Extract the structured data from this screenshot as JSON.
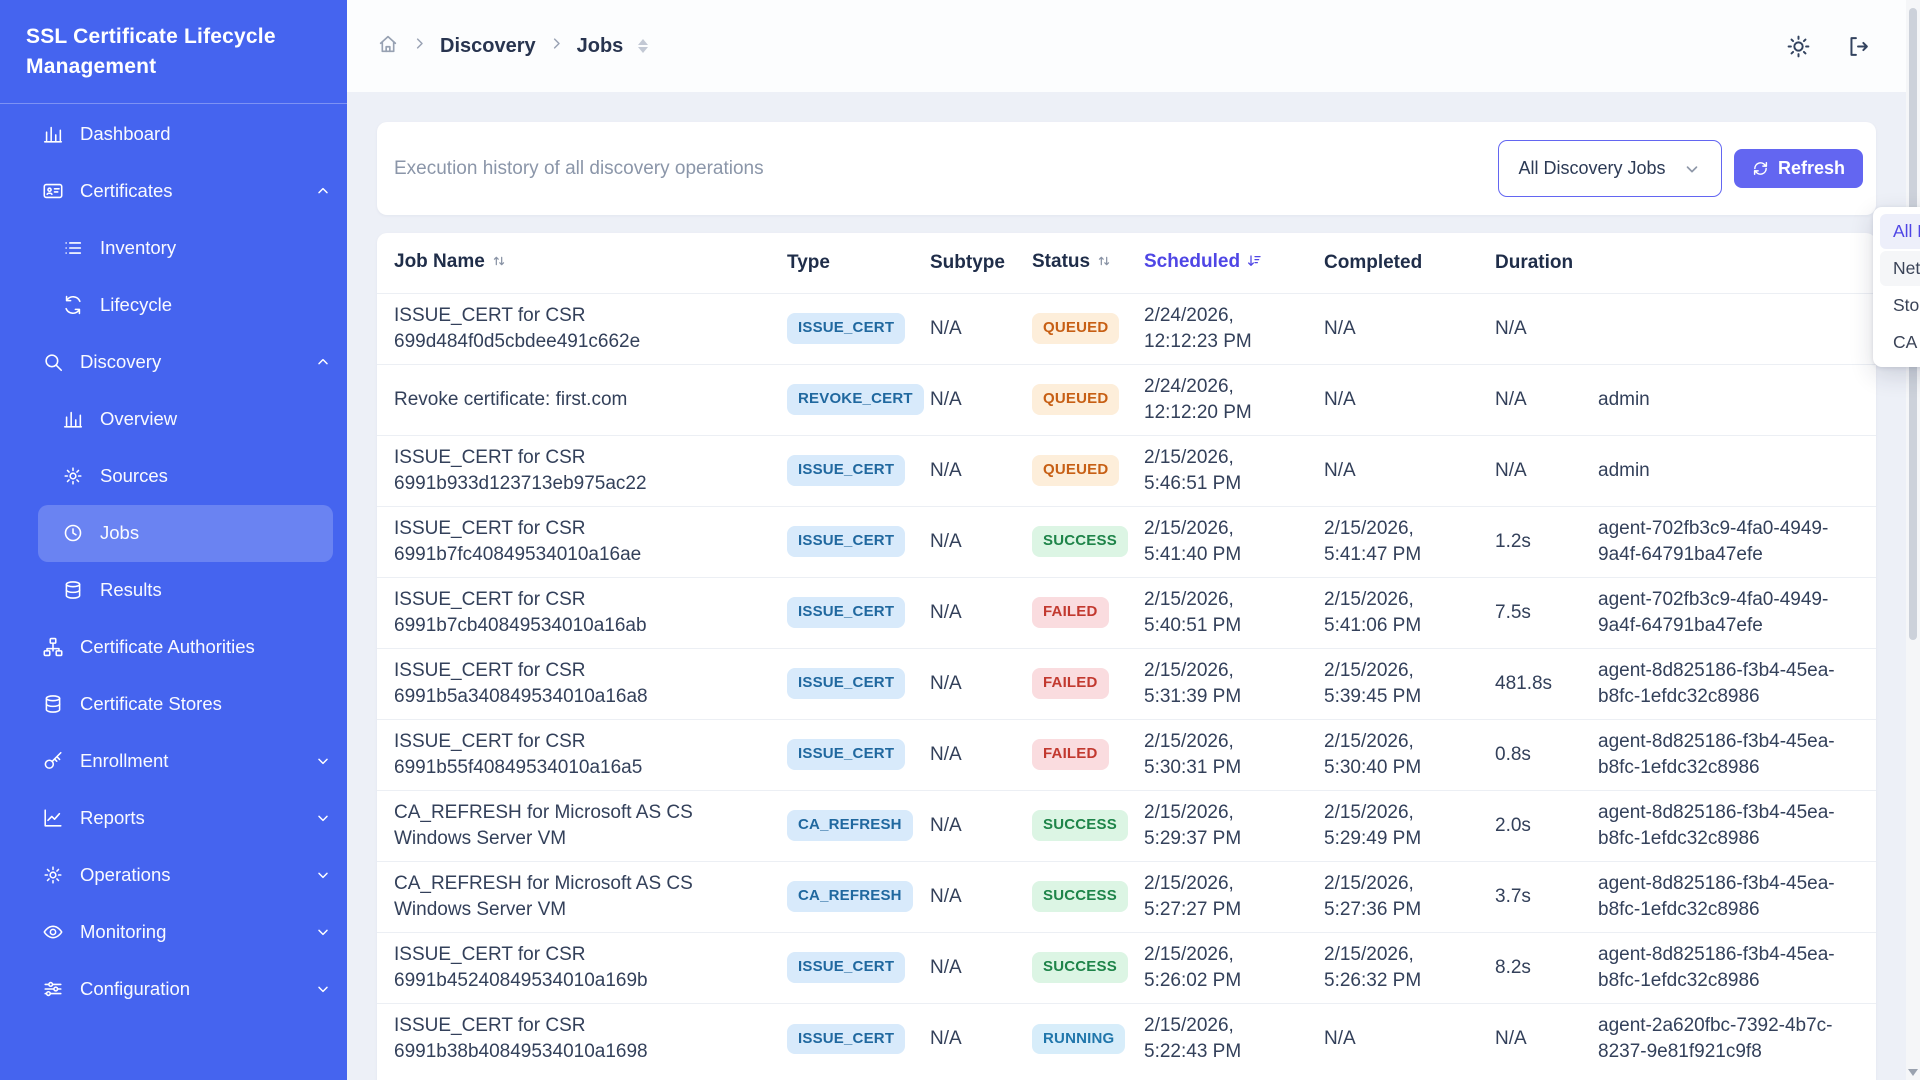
{
  "app": {
    "title": "SSL Certificate Lifecycle Management"
  },
  "sidebar": {
    "items": [
      {
        "label": "Dashboard",
        "icon": "chart-bar-icon",
        "level": 0
      },
      {
        "label": "Certificates",
        "icon": "id-card-icon",
        "level": 0,
        "chevron": "up"
      },
      {
        "label": "Inventory",
        "icon": "list-icon",
        "level": 1
      },
      {
        "label": "Lifecycle",
        "icon": "sync-icon",
        "level": 1
      },
      {
        "label": "Discovery",
        "icon": "search-icon",
        "level": 0,
        "chevron": "up"
      },
      {
        "label": "Overview",
        "icon": "chart-bar-icon",
        "level": 1
      },
      {
        "label": "Sources",
        "icon": "gear-icon",
        "level": 1
      },
      {
        "label": "Jobs",
        "icon": "clock-icon",
        "level": 1,
        "active": true
      },
      {
        "label": "Results",
        "icon": "database-icon",
        "level": 1
      },
      {
        "label": "Certificate Authorities",
        "icon": "sitemap-icon",
        "level": 0
      },
      {
        "label": "Certificate Stores",
        "icon": "database-icon",
        "level": 0
      },
      {
        "label": "Enrollment",
        "icon": "key-icon",
        "level": 0,
        "chevron": "down"
      },
      {
        "label": "Reports",
        "icon": "chart-line-icon",
        "level": 0,
        "chevron": "down"
      },
      {
        "label": "Operations",
        "icon": "gear-icon",
        "level": 0,
        "chevron": "down"
      },
      {
        "label": "Monitoring",
        "icon": "eye-icon",
        "level": 0,
        "chevron": "down"
      },
      {
        "label": "Configuration",
        "icon": "sliders-icon",
        "level": 0,
        "chevron": "down"
      }
    ]
  },
  "breadcrumb": {
    "items": [
      "Discovery",
      "Jobs"
    ]
  },
  "toolbar": {
    "description": "Execution history of all discovery operations",
    "filter_value": "All Discovery Jobs",
    "refresh_label": "Refresh"
  },
  "dropdown": {
    "options": [
      {
        "label": "All Discovery Jobs",
        "selected": true
      },
      {
        "label": "Network Discovery",
        "hovered": true
      },
      {
        "label": "Store Discovery"
      },
      {
        "label": "CA Discovery"
      }
    ]
  },
  "colors": {
    "sidebar": "#4564ef",
    "accent": "#6366f1",
    "status_queued": "#c75f14",
    "status_success": "#1e8449",
    "status_failed": "#c2392f",
    "status_running": "#2076ab"
  },
  "table": {
    "columns": [
      {
        "label": "Job Name",
        "sort": "both"
      },
      {
        "label": "Type"
      },
      {
        "label": "Subtype"
      },
      {
        "label": "Status",
        "sort": "both"
      },
      {
        "label": "Scheduled",
        "sort": "desc",
        "active": true
      },
      {
        "label": "Completed"
      },
      {
        "label": "Duration"
      },
      {
        "label": ""
      }
    ],
    "rows": [
      {
        "job_name": "ISSUE_CERT for CSR 699d484f0d5cbdee491c662e",
        "type": "ISSUE_CERT",
        "subtype": "N/A",
        "status": "QUEUED",
        "scheduled": "2/24/2026, 12:12:23 PM",
        "completed": "N/A",
        "duration": "N/A",
        "triggered_by": ""
      },
      {
        "job_name": "Revoke certificate: first.com",
        "type": "REVOKE_CERT",
        "subtype": "N/A",
        "status": "QUEUED",
        "scheduled": "2/24/2026, 12:12:20 PM",
        "completed": "N/A",
        "duration": "N/A",
        "triggered_by": "admin"
      },
      {
        "job_name": "ISSUE_CERT for CSR 6991b933d123713eb975ac22",
        "type": "ISSUE_CERT",
        "subtype": "N/A",
        "status": "QUEUED",
        "scheduled": "2/15/2026, 5:46:51 PM",
        "completed": "N/A",
        "duration": "N/A",
        "triggered_by": "admin"
      },
      {
        "job_name": "ISSUE_CERT for CSR 6991b7fc40849534010a16ae",
        "type": "ISSUE_CERT",
        "subtype": "N/A",
        "status": "SUCCESS",
        "scheduled": "2/15/2026, 5:41:40 PM",
        "completed": "2/15/2026, 5:41:47 PM",
        "duration": "1.2s",
        "triggered_by": "agent-702fb3c9-4fa0-4949-9a4f-64791ba47efe"
      },
      {
        "job_name": "ISSUE_CERT for CSR 6991b7cb40849534010a16ab",
        "type": "ISSUE_CERT",
        "subtype": "N/A",
        "status": "FAILED",
        "scheduled": "2/15/2026, 5:40:51 PM",
        "completed": "2/15/2026, 5:41:06 PM",
        "duration": "7.5s",
        "triggered_by": "agent-702fb3c9-4fa0-4949-9a4f-64791ba47efe"
      },
      {
        "job_name": "ISSUE_CERT for CSR 6991b5a340849534010a16a8",
        "type": "ISSUE_CERT",
        "subtype": "N/A",
        "status": "FAILED",
        "scheduled": "2/15/2026, 5:31:39 PM",
        "completed": "2/15/2026, 5:39:45 PM",
        "duration": "481.8s",
        "triggered_by": "agent-8d825186-f3b4-45ea-b8fc-1efdc32c8986"
      },
      {
        "job_name": "ISSUE_CERT for CSR 6991b55f40849534010a16a5",
        "type": "ISSUE_CERT",
        "subtype": "N/A",
        "status": "FAILED",
        "scheduled": "2/15/2026, 5:30:31 PM",
        "completed": "2/15/2026, 5:30:40 PM",
        "duration": "0.8s",
        "triggered_by": "agent-8d825186-f3b4-45ea-b8fc-1efdc32c8986"
      },
      {
        "job_name": "CA_REFRESH for Microsoft AS CS Windows Server VM",
        "type": "CA_REFRESH",
        "subtype": "N/A",
        "status": "SUCCESS",
        "scheduled": "2/15/2026, 5:29:37 PM",
        "completed": "2/15/2026, 5:29:49 PM",
        "duration": "2.0s",
        "triggered_by": "agent-8d825186-f3b4-45ea-b8fc-1efdc32c8986"
      },
      {
        "job_name": "CA_REFRESH for Microsoft AS CS Windows Server VM",
        "type": "CA_REFRESH",
        "subtype": "N/A",
        "status": "SUCCESS",
        "scheduled": "2/15/2026, 5:27:27 PM",
        "completed": "2/15/2026, 5:27:36 PM",
        "duration": "3.7s",
        "triggered_by": "agent-8d825186-f3b4-45ea-b8fc-1efdc32c8986"
      },
      {
        "job_name": "ISSUE_CERT for CSR 6991b45240849534010a169b",
        "type": "ISSUE_CERT",
        "subtype": "N/A",
        "status": "SUCCESS",
        "scheduled": "2/15/2026, 5:26:02 PM",
        "completed": "2/15/2026, 5:26:32 PM",
        "duration": "8.2s",
        "triggered_by": "agent-8d825186-f3b4-45ea-b8fc-1efdc32c8986"
      },
      {
        "job_name": "ISSUE_CERT for CSR 6991b38b40849534010a1698",
        "type": "ISSUE_CERT",
        "subtype": "N/A",
        "status": "RUNNING",
        "scheduled": "2/15/2026, 5:22:43 PM",
        "completed": "N/A",
        "duration": "N/A",
        "triggered_by": "agent-2a620fbc-7392-4b7c-8237-9e81f921c9f8"
      }
    ]
  }
}
